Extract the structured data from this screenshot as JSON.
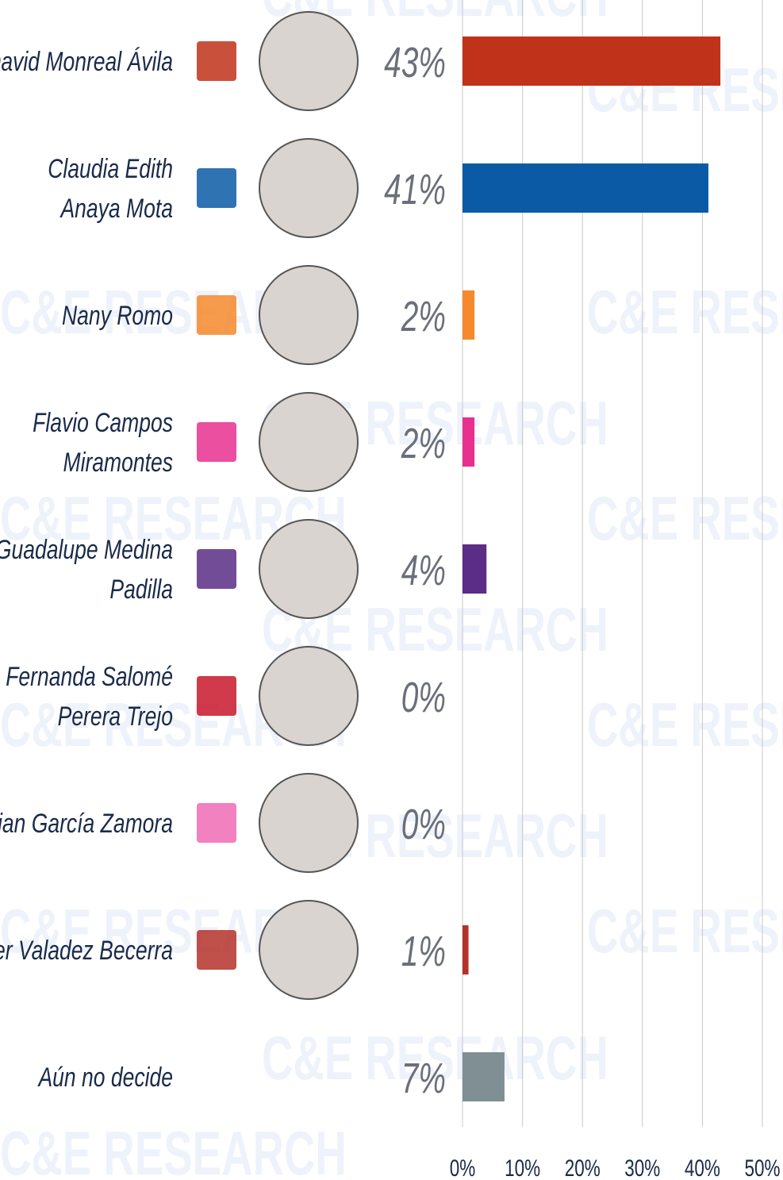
{
  "chart_data": {
    "type": "bar",
    "orientation": "horizontal",
    "watermark": "C&E RESEARCH",
    "categories": [
      "David Monreal Ávila",
      "Claudia Edith\nAnaya Mota",
      "Nany Romo",
      "Flavio Campos\nMiramontes",
      "Guadalupe Medina\nPadilla",
      "Fernanda Salomé\nPerera Trejo",
      "Mirian García Zamora",
      "Javier Valadez Becerra",
      "Aún no decide"
    ],
    "values": [
      43,
      41,
      2,
      2,
      4,
      0,
      0,
      1,
      7
    ],
    "value_labels": [
      "43%",
      "41%",
      "2%",
      "2%",
      "4%",
      "0%",
      "0%",
      "1%",
      "7%"
    ],
    "colors": [
      "#c0321a",
      "#0a5aa6",
      "#f5892b",
      "#e8308f",
      "#5b2d86",
      "#c8182a",
      "#f06bb4",
      "#b5312a",
      "#7f8f94"
    ],
    "xlim": [
      0,
      50
    ],
    "xticks": [
      {
        "value": 0,
        "label": "0%"
      },
      {
        "value": 10,
        "label": "10%"
      },
      {
        "value": 20,
        "label": "20%"
      },
      {
        "value": 30,
        "label": "30%"
      },
      {
        "value": 40,
        "label": "40%"
      },
      {
        "value": 50,
        "label": "50%"
      }
    ],
    "grid": true
  }
}
